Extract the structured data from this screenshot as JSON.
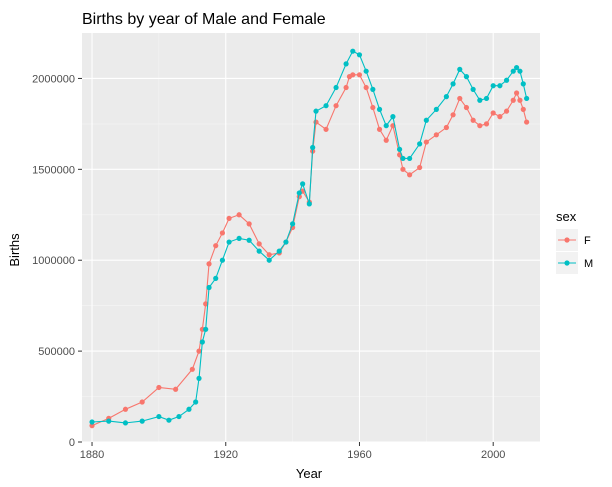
{
  "chart_data": {
    "type": "line",
    "title": "Births by year of Male and Female",
    "xlabel": "Year",
    "ylabel": "Births",
    "xlim": [
      1877,
      2014
    ],
    "ylim": [
      0,
      2250000
    ],
    "xticks": [
      1880,
      1920,
      1960,
      2000
    ],
    "xtick_labels": [
      "1880",
      "1920",
      "1960",
      "2000"
    ],
    "yticks": [
      0,
      500000,
      1000000,
      1500000,
      2000000
    ],
    "ytick_labels": [
      "0",
      "500000",
      "1000000",
      "1500000",
      "2000000"
    ],
    "grid": true,
    "legend": {
      "title": "sex",
      "placement": "right",
      "entries": [
        "F",
        "M"
      ]
    },
    "series": [
      {
        "name": "F",
        "color": "#F8766D",
        "points": [
          [
            1880,
            90000
          ],
          [
            1885,
            130000
          ],
          [
            1890,
            180000
          ],
          [
            1895,
            220000
          ],
          [
            1900,
            300000
          ],
          [
            1905,
            290000
          ],
          [
            1910,
            400000
          ],
          [
            1912,
            500000
          ],
          [
            1913,
            620000
          ],
          [
            1914,
            760000
          ],
          [
            1915,
            980000
          ],
          [
            1917,
            1080000
          ],
          [
            1919,
            1150000
          ],
          [
            1921,
            1230000
          ],
          [
            1924,
            1250000
          ],
          [
            1927,
            1200000
          ],
          [
            1930,
            1090000
          ],
          [
            1933,
            1030000
          ],
          [
            1936,
            1040000
          ],
          [
            1938,
            1100000
          ],
          [
            1940,
            1180000
          ],
          [
            1942,
            1350000
          ],
          [
            1943,
            1380000
          ],
          [
            1945,
            1320000
          ],
          [
            1946,
            1600000
          ],
          [
            1947,
            1760000
          ],
          [
            1950,
            1720000
          ],
          [
            1953,
            1850000
          ],
          [
            1956,
            1950000
          ],
          [
            1957,
            2010000
          ],
          [
            1958,
            2020000
          ],
          [
            1960,
            2020000
          ],
          [
            1962,
            1950000
          ],
          [
            1964,
            1840000
          ],
          [
            1966,
            1720000
          ],
          [
            1968,
            1660000
          ],
          [
            1970,
            1740000
          ],
          [
            1972,
            1580000
          ],
          [
            1973,
            1500000
          ],
          [
            1975,
            1470000
          ],
          [
            1978,
            1510000
          ],
          [
            1980,
            1650000
          ],
          [
            1983,
            1690000
          ],
          [
            1986,
            1730000
          ],
          [
            1988,
            1800000
          ],
          [
            1990,
            1890000
          ],
          [
            1992,
            1840000
          ],
          [
            1994,
            1770000
          ],
          [
            1996,
            1740000
          ],
          [
            1998,
            1750000
          ],
          [
            2000,
            1810000
          ],
          [
            2002,
            1790000
          ],
          [
            2004,
            1820000
          ],
          [
            2006,
            1880000
          ],
          [
            2007,
            1920000
          ],
          [
            2008,
            1880000
          ],
          [
            2009,
            1830000
          ],
          [
            2010,
            1760000
          ]
        ]
      },
      {
        "name": "M",
        "color": "#00BFC4",
        "points": [
          [
            1880,
            110000
          ],
          [
            1885,
            115000
          ],
          [
            1890,
            105000
          ],
          [
            1895,
            115000
          ],
          [
            1900,
            140000
          ],
          [
            1903,
            120000
          ],
          [
            1906,
            140000
          ],
          [
            1909,
            180000
          ],
          [
            1911,
            220000
          ],
          [
            1912,
            350000
          ],
          [
            1913,
            550000
          ],
          [
            1914,
            620000
          ],
          [
            1915,
            850000
          ],
          [
            1917,
            900000
          ],
          [
            1919,
            1000000
          ],
          [
            1921,
            1100000
          ],
          [
            1924,
            1120000
          ],
          [
            1927,
            1110000
          ],
          [
            1930,
            1050000
          ],
          [
            1933,
            1000000
          ],
          [
            1936,
            1050000
          ],
          [
            1938,
            1100000
          ],
          [
            1940,
            1200000
          ],
          [
            1942,
            1370000
          ],
          [
            1943,
            1420000
          ],
          [
            1945,
            1310000
          ],
          [
            1946,
            1620000
          ],
          [
            1947,
            1820000
          ],
          [
            1950,
            1850000
          ],
          [
            1953,
            1950000
          ],
          [
            1956,
            2080000
          ],
          [
            1958,
            2150000
          ],
          [
            1960,
            2130000
          ],
          [
            1962,
            2040000
          ],
          [
            1964,
            1940000
          ],
          [
            1966,
            1830000
          ],
          [
            1968,
            1740000
          ],
          [
            1970,
            1790000
          ],
          [
            1972,
            1610000
          ],
          [
            1973,
            1560000
          ],
          [
            1975,
            1560000
          ],
          [
            1978,
            1640000
          ],
          [
            1980,
            1770000
          ],
          [
            1983,
            1830000
          ],
          [
            1986,
            1900000
          ],
          [
            1988,
            1970000
          ],
          [
            1990,
            2050000
          ],
          [
            1992,
            2010000
          ],
          [
            1994,
            1940000
          ],
          [
            1996,
            1880000
          ],
          [
            1998,
            1890000
          ],
          [
            2000,
            1960000
          ],
          [
            2002,
            1960000
          ],
          [
            2004,
            1990000
          ],
          [
            2006,
            2040000
          ],
          [
            2007,
            2060000
          ],
          [
            2008,
            2040000
          ],
          [
            2009,
            1970000
          ],
          [
            2010,
            1890000
          ]
        ]
      }
    ]
  }
}
